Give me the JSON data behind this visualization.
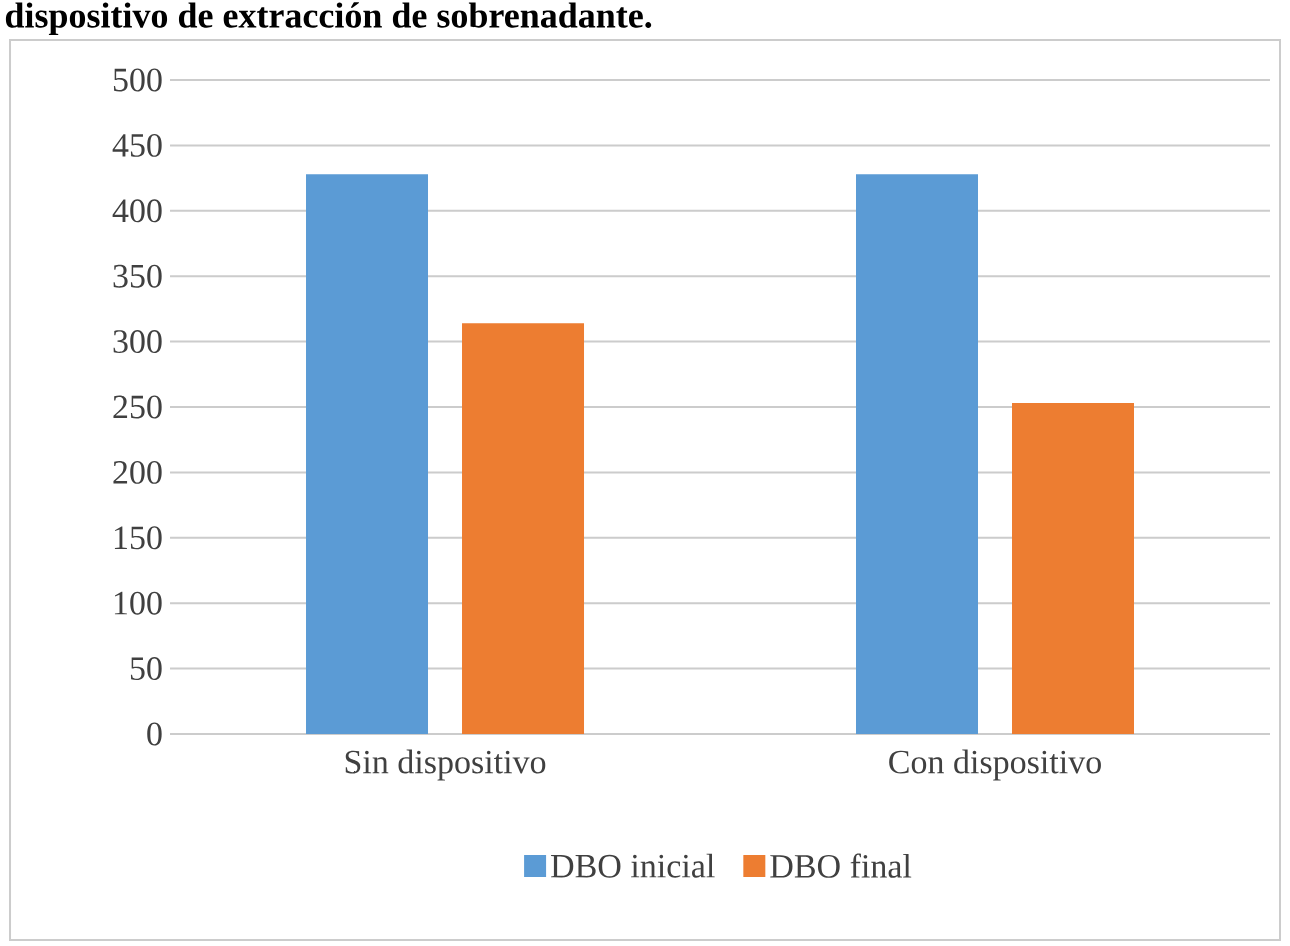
{
  "chart_data": {
    "type": "bar",
    "title": "dispositivo de extracción de sobrenadante.",
    "categories": [
      "Sin dispositivo",
      "Con dispositivo"
    ],
    "series": [
      {
        "name": "DBO inicial",
        "color": "#5b9bd5",
        "values": [
          428,
          428
        ]
      },
      {
        "name": "DBO final",
        "color": "#ed7d31",
        "values": [
          314,
          253
        ]
      }
    ],
    "ylim": [
      0,
      500
    ],
    "yticks": [
      0,
      50,
      100,
      150,
      200,
      250,
      300,
      350,
      400,
      450,
      500
    ],
    "grid": "y",
    "legend": "bottom"
  }
}
